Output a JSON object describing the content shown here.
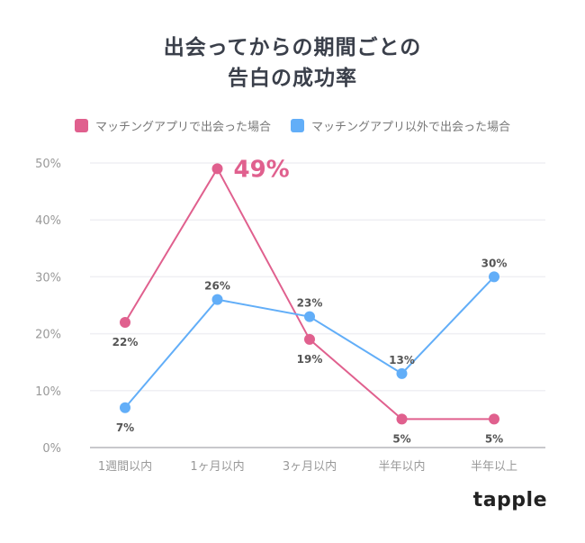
{
  "chart_data": {
    "type": "line",
    "title_lines": [
      "出会ってからの期間ごとの",
      "告白の成功率"
    ],
    "categories": [
      "1週間以内",
      "1ヶ月以内",
      "3ヶ月以内",
      "半年以内",
      "半年以上"
    ],
    "ylim": [
      0,
      50
    ],
    "yticks": [
      "0%",
      "10%",
      "20%",
      "30%",
      "40%",
      "50%"
    ],
    "grid": true,
    "legend_position": "top",
    "series": [
      {
        "name": "マッチングアプリで出会った場合",
        "color": "#e0608e",
        "values": [
          22,
          49,
          19,
          5,
          5
        ],
        "labels": [
          "22%",
          "49%",
          "19%",
          "5%",
          "5%"
        ]
      },
      {
        "name": "マッチングアプリ以外で出会った場合",
        "color": "#62aef8",
        "values": [
          7,
          26,
          23,
          13,
          30
        ],
        "labels": [
          "7%",
          "26%",
          "23%",
          "13%",
          "30%"
        ]
      }
    ]
  },
  "brand": "tapple"
}
